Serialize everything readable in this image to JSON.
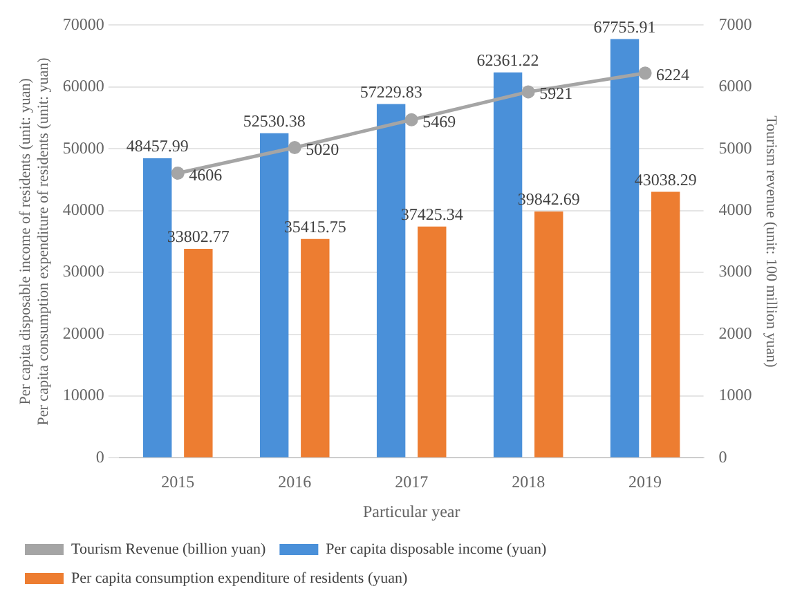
{
  "chart_data": {
    "type": "bar",
    "categories": [
      "2015",
      "2016",
      "2017",
      "2018",
      "2019"
    ],
    "series": [
      {
        "name": "Per capita disposable income (yuan)",
        "color": "#4a90d9",
        "values": [
          48457.99,
          52530.38,
          57229.83,
          62361.22,
          67755.91
        ]
      },
      {
        "name": "Per capita consumption expenditure of residents (yuan)",
        "color": "#ed7d31",
        "values": [
          33802.77,
          35415.75,
          37425.34,
          39842.69,
          43038.29
        ]
      },
      {
        "name": "Tourism Revenue (billion yuan)",
        "type": "line",
        "axis": "y2",
        "color": "#a5a5a5",
        "marker": "circle",
        "values": [
          4606,
          5020,
          5469,
          5921,
          6224
        ]
      }
    ],
    "xlabel": "Particular year",
    "ylabel": "Per capita disposable income of residents (unit: yuan)\nPer capita consumption expenditure of residents (unit: yuan)",
    "y2label": "Tourism revenue (unit: 100 million yuan)",
    "ylim": [
      0,
      70000
    ],
    "yticks": [
      0,
      10000,
      20000,
      30000,
      40000,
      50000,
      60000,
      70000
    ],
    "y2lim": [
      0,
      7000
    ],
    "y2ticks": [
      0,
      1000,
      2000,
      3000,
      4000,
      5000,
      6000,
      7000
    ],
    "grid": "y",
    "legend": "bottom",
    "data_labels": true
  }
}
